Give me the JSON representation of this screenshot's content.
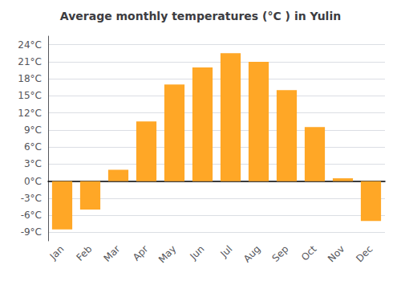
{
  "chart_data": {
    "type": "bar",
    "title": "Average monthly temperatures (°C ) in Yulin",
    "categories": [
      "Jan",
      "Feb",
      "Mar",
      "Apr",
      "May",
      "Jun",
      "Jul",
      "Aug",
      "Sep",
      "Oct",
      "Nov",
      "Dec"
    ],
    "values": [
      -8.5,
      -5.0,
      2.0,
      10.5,
      17.0,
      20.0,
      22.5,
      21.0,
      16.0,
      9.5,
      0.5,
      -7.0
    ],
    "color": "#FFA726",
    "ylim": [
      -10.5,
      25.5
    ],
    "yticks": [
      {
        "value": -9,
        "label": "-9°C"
      },
      {
        "value": -6,
        "label": "-6°C"
      },
      {
        "value": -3,
        "label": "-3°C"
      },
      {
        "value": 0,
        "label": "0°C"
      },
      {
        "value": 3,
        "label": "3°C"
      },
      {
        "value": 6,
        "label": "6°C"
      },
      {
        "value": 9,
        "label": "9°C"
      },
      {
        "value": 12,
        "label": "12°C"
      },
      {
        "value": 15,
        "label": "15°C"
      },
      {
        "value": 18,
        "label": "18°C"
      },
      {
        "value": 21,
        "label": "21°C"
      },
      {
        "value": 24,
        "label": "24°C"
      }
    ],
    "grid": true
  }
}
